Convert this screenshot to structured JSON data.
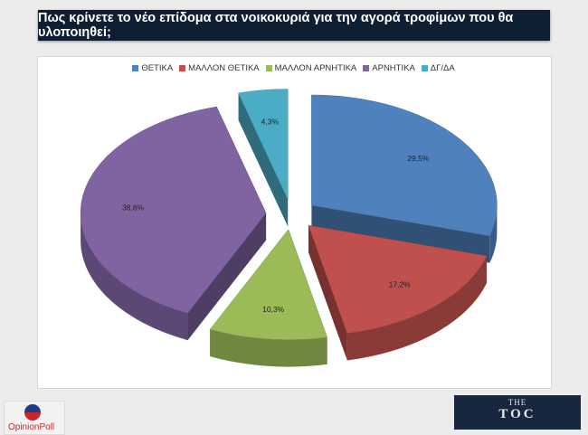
{
  "header": {
    "title": "Πως κρίνετε το νέο επίδομα στα νοικοκυριά για την αγορά τροφίμων που θα υλοποιηθεί;"
  },
  "chart_data": {
    "type": "pie",
    "title": "Πως κρίνετε το νέο επίδομα στα νοικοκυριά για την αγορά τροφίμων που θα υλοποιηθεί;",
    "legend_position": "top",
    "exploded": true,
    "three_d": true,
    "categories": [
      "ΘΕΤΙΚΑ",
      "ΜΑΛΛΟΝ ΘΕΤΙΚΑ",
      "ΜΑΛΛΟΝ ΑΡΝΗΤΙΚΑ",
      "ΑΡΝΗΤΙΚΑ",
      "ΔΓ/ΔΑ"
    ],
    "values": [
      29.5,
      17.2,
      10.3,
      38.8,
      4.3
    ],
    "labels": [
      "29,5%",
      "17,2%",
      "10,3%",
      "38,8%",
      "4,3%"
    ],
    "colors": [
      "#4f81bd",
      "#c0504d",
      "#9bbb59",
      "#8064a2",
      "#4bacc6"
    ]
  },
  "logos": {
    "opinion_poll": "OpinionPoll",
    "toc_top": "THE",
    "toc_main": "TOC"
  }
}
